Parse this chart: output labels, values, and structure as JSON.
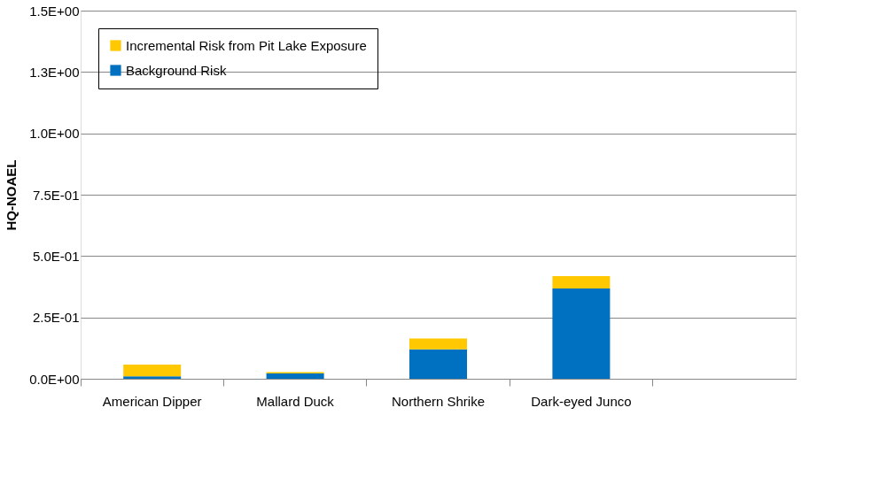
{
  "chart_data": {
    "type": "bar",
    "ylabel": "HQ-NOAEL",
    "stacked": true,
    "categories": [
      "American Dipper",
      "Mallard Duck",
      "Northern Shrike",
      "Dark-eyed Junco",
      null
    ],
    "series": [
      {
        "name": "Background Risk",
        "color": "#0070c0",
        "values": [
          0.01,
          0.022,
          0.12,
          0.368,
          null
        ]
      },
      {
        "name": "Incremental Risk from Pit Lake Exposure",
        "color": "#ffc800",
        "values": [
          0.048,
          0.005,
          0.044,
          0.05,
          null
        ]
      }
    ],
    "ylim": [
      0,
      1.5
    ],
    "yticks": [
      {
        "value": 0,
        "label": "0.0E+00"
      },
      {
        "value": 0.25,
        "label": "2.5E-01"
      },
      {
        "value": 0.5,
        "label": "5.0E-01"
      },
      {
        "value": 0.75,
        "label": "7.5E-01"
      },
      {
        "value": 1.0,
        "label": "1.0E+00"
      },
      {
        "value": 1.25,
        "label": "1.3E+00"
      },
      {
        "value": 1.5,
        "label": "1.5E+00"
      }
    ],
    "grid": "y",
    "legend": "top left"
  }
}
